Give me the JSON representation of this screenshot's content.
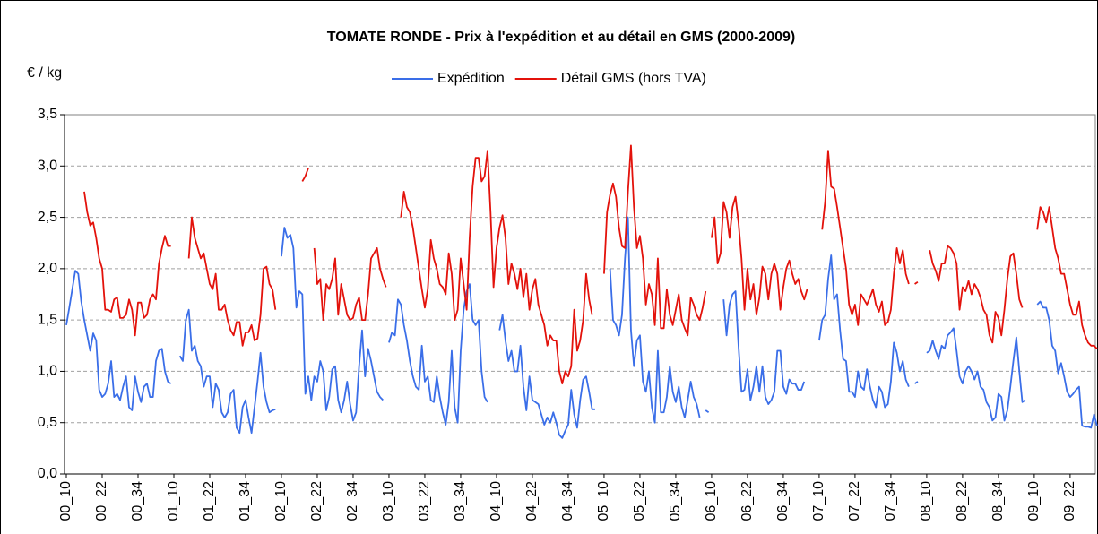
{
  "chart_data": {
    "type": "line",
    "title": "TOMATE RONDE - Prix à l'expédition et au détail en GMS (2000-2009)",
    "y_label": "€ / kg",
    "ylim": [
      0,
      3.5
    ],
    "yticks": [
      {
        "value": 0,
        "label": "0,0"
      },
      {
        "value": 0.5,
        "label": "0,5"
      },
      {
        "value": 1,
        "label": "1,0"
      },
      {
        "value": 1.5,
        "label": "1,5"
      },
      {
        "value": 2,
        "label": "2,0"
      },
      {
        "value": 2.5,
        "label": "2,5"
      },
      {
        "value": 3,
        "label": "3,0"
      },
      {
        "value": 3.5,
        "label": "3,5"
      }
    ],
    "grid": true,
    "legend": "top",
    "categories": [
      "00_10",
      null,
      null,
      null,
      null,
      null,
      null,
      null,
      null,
      null,
      null,
      null,
      "00_22",
      null,
      null,
      null,
      null,
      null,
      null,
      null,
      null,
      null,
      null,
      null,
      "00_34",
      null,
      null,
      null,
      null,
      null,
      null,
      null,
      null,
      null,
      null,
      null,
      "01_10",
      null,
      null,
      null,
      null,
      null,
      null,
      null,
      null,
      null,
      null,
      null,
      "01_22",
      null,
      null,
      null,
      null,
      null,
      null,
      null,
      null,
      null,
      null,
      null,
      "01_34",
      null,
      null,
      null,
      null,
      null,
      null,
      null,
      null,
      null,
      null,
      null,
      "02_10",
      null,
      null,
      null,
      null,
      null,
      null,
      null,
      null,
      null,
      null,
      null,
      "02_22",
      null,
      null,
      null,
      null,
      null,
      null,
      null,
      null,
      null,
      null,
      null,
      "02_34",
      null,
      null,
      null,
      null,
      null,
      null,
      null,
      null,
      null,
      null,
      null,
      "03_10",
      null,
      null,
      null,
      null,
      null,
      null,
      null,
      null,
      null,
      null,
      null,
      "03_22",
      null,
      null,
      null,
      null,
      null,
      null,
      null,
      null,
      null,
      null,
      null,
      "03_34",
      null,
      null,
      null,
      null,
      null,
      null,
      null,
      null,
      null,
      null,
      null,
      "04_10",
      null,
      null,
      null,
      null,
      null,
      null,
      null,
      null,
      null,
      null,
      null,
      "04_22",
      null,
      null,
      null,
      null,
      null,
      null,
      null,
      null,
      null,
      null,
      null,
      "04_34",
      null,
      null,
      null,
      null,
      null,
      null,
      null,
      null,
      null,
      null,
      null,
      "05_10",
      null,
      null,
      null,
      null,
      null,
      null,
      null,
      null,
      null,
      null,
      null,
      "05_22",
      null,
      null,
      null,
      null,
      null,
      null,
      null,
      null,
      null,
      null,
      null,
      "05_34",
      null,
      null,
      null,
      null,
      null,
      null,
      null,
      null,
      null,
      null,
      null,
      "06_10",
      null,
      null,
      null,
      null,
      null,
      null,
      null,
      null,
      null,
      null,
      null,
      "06_22",
      null,
      null,
      null,
      null,
      null,
      null,
      null,
      null,
      null,
      null,
      null,
      "06_34",
      null,
      null,
      null,
      null,
      null,
      null,
      null,
      null,
      null,
      null,
      null,
      "07_10",
      null,
      null,
      null,
      null,
      null,
      null,
      null,
      null,
      null,
      null,
      null,
      "07_22",
      null,
      null,
      null,
      null,
      null,
      null,
      null,
      null,
      null,
      null,
      null,
      "07_34",
      null,
      null,
      null,
      null,
      null,
      null,
      null,
      null,
      null,
      null,
      null,
      "08_10",
      null,
      null,
      null,
      null,
      null,
      null,
      null,
      null,
      null,
      null,
      null,
      "08_22",
      null,
      null,
      null,
      null,
      null,
      null,
      null,
      null,
      null,
      null,
      null,
      "08_34",
      null,
      null,
      null,
      null,
      null,
      null,
      null,
      null,
      null,
      null,
      null,
      "09_10",
      null,
      null,
      null,
      null,
      null,
      null,
      null,
      null,
      null,
      null,
      null,
      "09_22",
      null,
      null,
      null,
      null,
      null,
      null,
      null,
      null,
      null
    ],
    "series": [
      {
        "name": "Expédition",
        "color": "#3a6ee8",
        "values": [
          1.45,
          1.62,
          1.8,
          1.98,
          1.95,
          1.68,
          1.5,
          1.35,
          1.2,
          1.37,
          1.3,
          0.82,
          0.75,
          0.78,
          0.88,
          1.1,
          0.75,
          0.78,
          0.72,
          0.85,
          0.95,
          0.65,
          0.62,
          0.95,
          0.8,
          0.7,
          0.85,
          0.88,
          0.75,
          0.75,
          1.1,
          1.2,
          1.22,
          1.0,
          0.9,
          0.88,
          null,
          null,
          1.15,
          1.1,
          1.5,
          1.6,
          1.2,
          1.25,
          1.1,
          1.05,
          0.85,
          0.95,
          0.95,
          0.65,
          0.88,
          0.82,
          0.6,
          0.55,
          0.6,
          0.78,
          0.82,
          0.45,
          0.4,
          0.65,
          0.72,
          0.55,
          0.4,
          0.65,
          0.9,
          1.18,
          0.85,
          0.7,
          0.6,
          0.62,
          0.63,
          null,
          2.12,
          2.4,
          2.3,
          2.33,
          2.2,
          1.62,
          1.78,
          1.75,
          0.78,
          0.95,
          0.72,
          0.95,
          0.9,
          1.1,
          1.0,
          0.62,
          0.75,
          1.02,
          1.05,
          0.72,
          0.6,
          0.72,
          0.9,
          0.68,
          0.52,
          0.6,
          1.05,
          1.4,
          0.95,
          1.22,
          1.1,
          0.95,
          0.8,
          0.75,
          0.72,
          null,
          1.28,
          1.38,
          1.35,
          1.7,
          1.65,
          1.45,
          1.3,
          1.1,
          0.95,
          0.85,
          0.82,
          1.25,
          0.9,
          0.95,
          0.72,
          0.7,
          0.95,
          0.75,
          0.6,
          0.48,
          0.7,
          1.2,
          0.65,
          0.5,
          1.2,
          1.6,
          1.78,
          1.85,
          1.5,
          1.45,
          1.5,
          1.0,
          0.75,
          0.7,
          null,
          null,
          null,
          1.4,
          1.55,
          1.3,
          1.1,
          1.2,
          1.0,
          1.0,
          1.25,
          0.85,
          0.62,
          0.95,
          0.72,
          0.7,
          0.68,
          0.58,
          0.48,
          0.55,
          0.5,
          0.6,
          0.5,
          0.38,
          0.35,
          0.42,
          0.48,
          0.82,
          0.58,
          0.45,
          0.72,
          0.92,
          0.95,
          0.8,
          0.63,
          0.63,
          null,
          null,
          null,
          null,
          2.0,
          1.5,
          1.45,
          1.35,
          1.55,
          2.1,
          2.5,
          1.4,
          1.05,
          1.3,
          1.35,
          0.9,
          0.8,
          1.0,
          0.65,
          0.5,
          1.2,
          0.6,
          0.6,
          0.75,
          1.05,
          0.8,
          0.7,
          0.85,
          0.65,
          0.55,
          0.72,
          0.9,
          0.75,
          0.68,
          0.55,
          null,
          0.62,
          0.6,
          null,
          null,
          null,
          null,
          1.7,
          1.35,
          1.65,
          1.75,
          1.78,
          1.25,
          0.8,
          0.82,
          1.02,
          0.72,
          0.85,
          1.05,
          0.8,
          1.05,
          0.75,
          0.68,
          0.72,
          0.8,
          1.2,
          1.2,
          0.85,
          0.78,
          0.92,
          0.88,
          0.88,
          0.82,
          0.82,
          0.9,
          null,
          null,
          null,
          null,
          1.3,
          1.5,
          1.55,
          1.9,
          2.13,
          1.7,
          1.75,
          1.4,
          1.12,
          1.1,
          0.8,
          0.8,
          0.75,
          1.0,
          0.85,
          0.82,
          1.02,
          0.85,
          0.72,
          0.65,
          0.85,
          0.8,
          0.65,
          0.68,
          0.9,
          1.28,
          1.18,
          1.0,
          1.1,
          0.92,
          0.85,
          null,
          0.88,
          0.9,
          null,
          null,
          1.18,
          1.2,
          1.3,
          1.2,
          1.12,
          1.25,
          1.22,
          1.35,
          1.38,
          1.42,
          1.2,
          0.95,
          0.88,
          1.0,
          1.05,
          1.0,
          0.92,
          1.0,
          0.85,
          0.82,
          0.7,
          0.65,
          0.52,
          0.55,
          0.78,
          0.75,
          0.52,
          0.62,
          0.85,
          1.1,
          1.33,
          1.0,
          0.7,
          0.72,
          null,
          null,
          null,
          1.65,
          1.68,
          1.62,
          1.62,
          1.5,
          1.25,
          1.2,
          0.98,
          1.08,
          0.95,
          0.8,
          0.75,
          0.78,
          0.82,
          0.85,
          0.47,
          0.46,
          0.46,
          0.45,
          0.58,
          0.47
        ]
      },
      {
        "name": "Détail GMS (hors TVA)",
        "color": "#e3120b",
        "values": [
          null,
          null,
          null,
          null,
          null,
          null,
          2.75,
          2.55,
          2.42,
          2.45,
          2.3,
          2.1,
          2.0,
          1.6,
          1.6,
          1.58,
          1.7,
          1.72,
          1.52,
          1.52,
          1.55,
          1.7,
          1.6,
          1.35,
          1.67,
          1.67,
          1.52,
          1.55,
          1.7,
          1.75,
          1.7,
          2.05,
          2.2,
          2.32,
          2.22,
          2.22,
          null,
          null,
          null,
          null,
          null,
          2.1,
          2.5,
          2.3,
          2.2,
          2.1,
          2.15,
          2.0,
          1.85,
          1.8,
          1.95,
          1.6,
          1.6,
          1.65,
          1.5,
          1.4,
          1.35,
          1.48,
          1.48,
          1.25,
          1.38,
          1.38,
          1.45,
          1.3,
          1.32,
          1.55,
          2.0,
          2.02,
          1.85,
          1.8,
          1.6,
          null,
          null,
          null,
          null,
          null,
          null,
          null,
          null,
          2.85,
          2.9,
          2.98,
          null,
          2.2,
          1.85,
          1.9,
          1.5,
          1.85,
          1.8,
          1.9,
          2.1,
          1.55,
          1.85,
          1.7,
          1.55,
          1.5,
          1.52,
          1.65,
          1.72,
          1.5,
          1.5,
          1.75,
          2.1,
          2.15,
          2.2,
          2.0,
          1.9,
          1.82,
          null,
          null,
          null,
          null,
          2.5,
          2.75,
          2.6,
          2.55,
          2.4,
          2.2,
          2.0,
          1.8,
          1.62,
          1.8,
          2.28,
          2.1,
          2.0,
          1.85,
          1.82,
          1.75,
          2.15,
          1.95,
          1.5,
          1.6,
          2.1,
          1.85,
          1.6,
          2.3,
          2.8,
          3.08,
          3.08,
          2.85,
          2.9,
          3.15,
          2.55,
          1.82,
          2.2,
          2.4,
          2.52,
          2.3,
          1.85,
          2.05,
          1.95,
          1.8,
          2.0,
          1.72,
          1.95,
          1.6,
          1.8,
          1.9,
          1.65,
          1.55,
          1.45,
          1.25,
          1.35,
          1.3,
          1.3,
          1.0,
          0.88,
          1.0,
          0.95,
          1.05,
          1.6,
          1.2,
          1.3,
          1.5,
          1.95,
          1.7,
          1.55,
          null,
          null,
          null,
          1.95,
          2.55,
          2.72,
          2.83,
          2.7,
          2.4,
          2.22,
          2.2,
          2.75,
          3.2,
          2.6,
          2.2,
          2.32,
          2.1,
          1.65,
          1.85,
          1.75,
          1.45,
          2.1,
          1.42,
          1.42,
          1.8,
          1.55,
          1.45,
          1.6,
          1.75,
          1.5,
          1.42,
          1.35,
          1.72,
          1.65,
          1.55,
          1.5,
          1.62,
          1.78,
          null,
          2.3,
          2.5,
          2.05,
          2.15,
          2.65,
          2.55,
          2.3,
          2.6,
          2.7,
          2.45,
          2.1,
          1.6,
          2.0,
          1.7,
          1.85,
          1.55,
          1.72,
          2.02,
          1.95,
          1.7,
          1.95,
          2.05,
          1.95,
          1.6,
          1.82,
          2.0,
          2.08,
          1.95,
          1.85,
          1.9,
          1.78,
          1.7,
          1.8,
          null,
          null,
          null,
          null,
          2.38,
          2.65,
          3.15,
          2.8,
          2.78,
          2.6,
          2.4,
          2.2,
          2.0,
          1.65,
          1.55,
          1.65,
          1.45,
          1.75,
          1.7,
          1.65,
          1.72,
          1.8,
          1.65,
          1.58,
          1.68,
          1.45,
          1.48,
          1.6,
          1.95,
          2.2,
          2.05,
          2.18,
          1.95,
          1.85,
          null,
          1.85,
          1.87,
          null,
          null,
          null,
          2.18,
          2.05,
          1.98,
          1.88,
          2.05,
          2.05,
          2.22,
          2.2,
          2.15,
          2.05,
          1.6,
          1.82,
          1.78,
          1.88,
          1.75,
          1.85,
          1.8,
          1.72,
          1.6,
          1.55,
          1.35,
          1.28,
          1.58,
          1.52,
          1.35,
          1.6,
          1.9,
          2.12,
          2.15,
          1.95,
          1.7,
          1.62,
          null,
          null,
          null,
          null,
          2.38,
          2.6,
          2.55,
          2.45,
          2.6,
          2.4,
          2.2,
          2.1,
          1.95,
          1.95,
          1.8,
          1.65,
          1.55,
          1.55,
          1.68,
          1.45,
          1.35,
          1.28,
          1.25,
          1.25,
          1.22
        ]
      }
    ]
  }
}
